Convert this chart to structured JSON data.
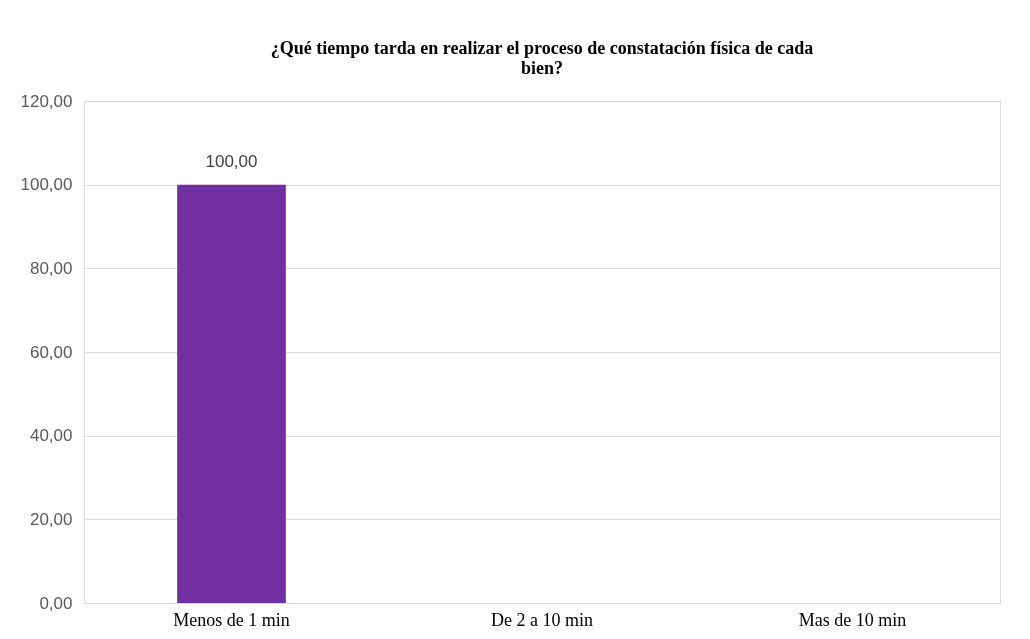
{
  "chart_data": {
    "type": "bar",
    "title": "¿Qué tiempo tarda en realizar el proceso de constatación física de cada bien?",
    "categories": [
      "Menos de 1 min",
      "De 2 a 10 min",
      "Mas de 10 min"
    ],
    "values": [
      100,
      0,
      0
    ],
    "color": "#7030a0",
    "value_labels": [
      "100,00",
      null,
      null
    ],
    "ylim": [
      0,
      120
    ],
    "yticks": [
      {
        "value": 0,
        "label": "0,00"
      },
      {
        "value": 20,
        "label": "20,00"
      },
      {
        "value": 40,
        "label": "40,00"
      },
      {
        "value": 60,
        "label": "60,00"
      },
      {
        "value": 80,
        "label": "80,00"
      },
      {
        "value": 100,
        "label": "100,00"
      },
      {
        "value": 120,
        "label": "120,00"
      }
    ],
    "grid": "y"
  }
}
